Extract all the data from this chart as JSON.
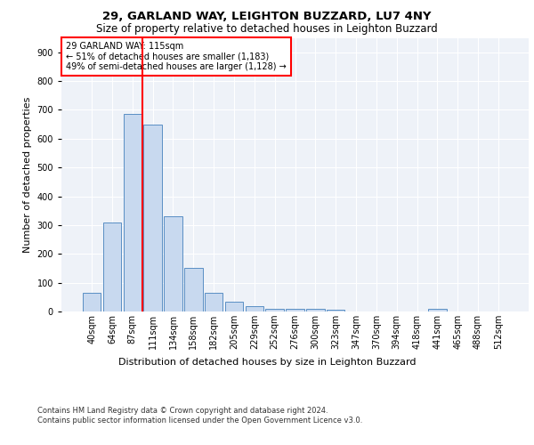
{
  "title1": "29, GARLAND WAY, LEIGHTON BUZZARD, LU7 4NY",
  "title2": "Size of property relative to detached houses in Leighton Buzzard",
  "xlabel": "Distribution of detached houses by size in Leighton Buzzard",
  "ylabel": "Number of detached properties",
  "footer": "Contains HM Land Registry data © Crown copyright and database right 2024.\nContains public sector information licensed under the Open Government Licence v3.0.",
  "bin_labels": [
    "40sqm",
    "64sqm",
    "87sqm",
    "111sqm",
    "134sqm",
    "158sqm",
    "182sqm",
    "205sqm",
    "229sqm",
    "252sqm",
    "276sqm",
    "300sqm",
    "323sqm",
    "347sqm",
    "370sqm",
    "394sqm",
    "418sqm",
    "441sqm",
    "465sqm",
    "488sqm",
    "512sqm"
  ],
  "bar_values": [
    65,
    310,
    685,
    648,
    330,
    150,
    65,
    35,
    20,
    10,
    10,
    10,
    5,
    0,
    0,
    0,
    0,
    10,
    0,
    0,
    0
  ],
  "bar_color": "#c8d9ef",
  "bar_edge_color": "#5a8fc4",
  "vline_color": "red",
  "vline_x_index": 3,
  "annotation_text": "29 GARLAND WAY: 115sqm\n← 51% of detached houses are smaller (1,183)\n49% of semi-detached houses are larger (1,128) →",
  "annotation_box_color": "white",
  "annotation_box_edge": "red",
  "ylim": [
    0,
    950
  ],
  "yticks": [
    0,
    100,
    200,
    300,
    400,
    500,
    600,
    700,
    800,
    900
  ],
  "bg_color": "#eef2f8",
  "title1_fontsize": 9.5,
  "title2_fontsize": 8.5,
  "xlabel_fontsize": 8,
  "ylabel_fontsize": 8,
  "tick_fontsize": 7,
  "annot_fontsize": 7,
  "footer_fontsize": 6
}
